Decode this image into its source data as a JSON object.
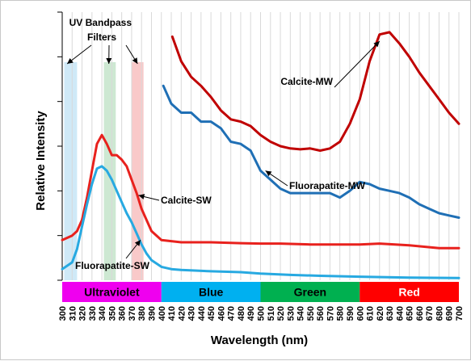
{
  "chart_data": {
    "type": "line",
    "title": "",
    "xlabel": "Wavelength (nm)",
    "ylabel": "Relative Intensity",
    "xlim": [
      300,
      700
    ],
    "ylim": [
      0,
      6
    ],
    "x_tick_step": 10,
    "y_tick_step": 1,
    "x_ticks": [
      "300",
      "310",
      "320",
      "330",
      "340",
      "350",
      "360",
      "370",
      "380",
      "390",
      "400",
      "410",
      "420",
      "430",
      "440",
      "450",
      "460",
      "470",
      "480",
      "490",
      "500",
      "510",
      "520",
      "530",
      "540",
      "550",
      "560",
      "570",
      "580",
      "590",
      "600",
      "610",
      "620",
      "630",
      "640",
      "650",
      "660",
      "670",
      "680",
      "690",
      "700"
    ],
    "grid": "vertical",
    "legend": "none",
    "colors": {
      "dark_red": "#c00000",
      "red": "#e8211d",
      "dark_blue": "#1f6fb5",
      "light_blue": "#27a9e1"
    },
    "filters": {
      "label": "UV Bandpass\nFilters",
      "label_lines": [
        "UV Bandpass",
        "Filters"
      ],
      "bands": [
        {
          "start": 302,
          "end": 315,
          "color": "#cfe9f7"
        },
        {
          "start": 342,
          "end": 354,
          "color": "#cde8d2"
        },
        {
          "start": 370,
          "end": 382,
          "color": "#f9c9c9"
        }
      ]
    },
    "color_bands": [
      {
        "label": "Ultraviolet",
        "start": 300,
        "end": 400,
        "color": "#ef00ef",
        "text_color": "#000000"
      },
      {
        "label": "Blue",
        "start": 400,
        "end": 500,
        "color": "#00b0f0",
        "text_color": "#000000"
      },
      {
        "label": "Green",
        "start": 500,
        "end": 600,
        "color": "#00b050",
        "text_color": "#000000"
      },
      {
        "label": "Red",
        "start": 600,
        "end": 700,
        "color": "#ff0000",
        "text_color": "#ffffff"
      }
    ],
    "series": [
      {
        "name": "Calcite-MW",
        "color": "#c00000",
        "x": [
          411,
          420,
          430,
          440,
          450,
          460,
          470,
          480,
          490,
          500,
          510,
          520,
          530,
          540,
          550,
          560,
          570,
          580,
          590,
          600,
          610,
          620,
          630,
          640,
          650,
          660,
          670,
          680,
          690,
          700
        ],
        "y": [
          5.45,
          4.9,
          4.55,
          4.35,
          4.1,
          3.8,
          3.6,
          3.55,
          3.45,
          3.25,
          3.1,
          3.0,
          2.95,
          2.93,
          2.95,
          2.9,
          2.95,
          3.1,
          3.5,
          4.05,
          4.9,
          5.5,
          5.55,
          5.3,
          5.0,
          4.65,
          4.35,
          4.05,
          3.75,
          3.5
        ]
      },
      {
        "name": "Fluorapatite-MW",
        "color": "#1f6fb5",
        "x": [
          402,
          410,
          420,
          430,
          440,
          450,
          460,
          470,
          480,
          490,
          500,
          510,
          520,
          530,
          540,
          550,
          560,
          570,
          580,
          590,
          600,
          610,
          620,
          630,
          640,
          650,
          660,
          670,
          680,
          690,
          700
        ],
        "y": [
          4.35,
          3.95,
          3.75,
          3.75,
          3.55,
          3.55,
          3.4,
          3.1,
          3.05,
          2.9,
          2.45,
          2.25,
          2.05,
          1.95,
          1.95,
          1.95,
          1.95,
          1.95,
          1.85,
          2.0,
          2.2,
          2.15,
          2.05,
          2.0,
          1.95,
          1.85,
          1.7,
          1.6,
          1.5,
          1.45,
          1.4
        ]
      },
      {
        "name": "Calcite-SW",
        "color": "#e8211d",
        "x": [
          300,
          310,
          315,
          320,
          325,
          330,
          335,
          340,
          345,
          350,
          355,
          360,
          365,
          370,
          375,
          380,
          390,
          400,
          420,
          450,
          480,
          500,
          520,
          550,
          580,
          600,
          620,
          650,
          680,
          700
        ],
        "y": [
          0.9,
          1.0,
          1.1,
          1.35,
          1.85,
          2.45,
          3.05,
          3.25,
          3.05,
          2.8,
          2.8,
          2.7,
          2.55,
          2.25,
          1.95,
          1.6,
          1.1,
          0.9,
          0.85,
          0.85,
          0.83,
          0.82,
          0.82,
          0.8,
          0.8,
          0.8,
          0.82,
          0.78,
          0.72,
          0.72
        ]
      },
      {
        "name": "Fluorapatite-SW",
        "color": "#27a9e1",
        "x": [
          300,
          310,
          315,
          320,
          325,
          330,
          335,
          340,
          345,
          350,
          355,
          360,
          365,
          370,
          375,
          380,
          385,
          390,
          400,
          410,
          420,
          450,
          480,
          500,
          530,
          560,
          600,
          650,
          700
        ],
        "y": [
          0.25,
          0.4,
          0.7,
          1.2,
          1.7,
          2.15,
          2.5,
          2.55,
          2.45,
          2.25,
          2.0,
          1.75,
          1.5,
          1.3,
          1.05,
          0.8,
          0.6,
          0.45,
          0.3,
          0.25,
          0.23,
          0.2,
          0.18,
          0.15,
          0.12,
          0.1,
          0.08,
          0.06,
          0.05
        ]
      }
    ],
    "annotations": [
      {
        "text": "Calcite-MW",
        "series": "Calcite-MW",
        "x": 620,
        "y": 5.35
      },
      {
        "text": "Fluorapatite-MW",
        "series": "Fluorapatite-MW",
        "x": 505,
        "y": 2.45
      },
      {
        "text": "Calcite-SW",
        "series": "Calcite-SW",
        "x": 377,
        "y": 1.9
      },
      {
        "text": "Fluorapatite-SW",
        "series": "Fluorapatite-SW",
        "x": 379,
        "y": 0.9
      }
    ]
  }
}
